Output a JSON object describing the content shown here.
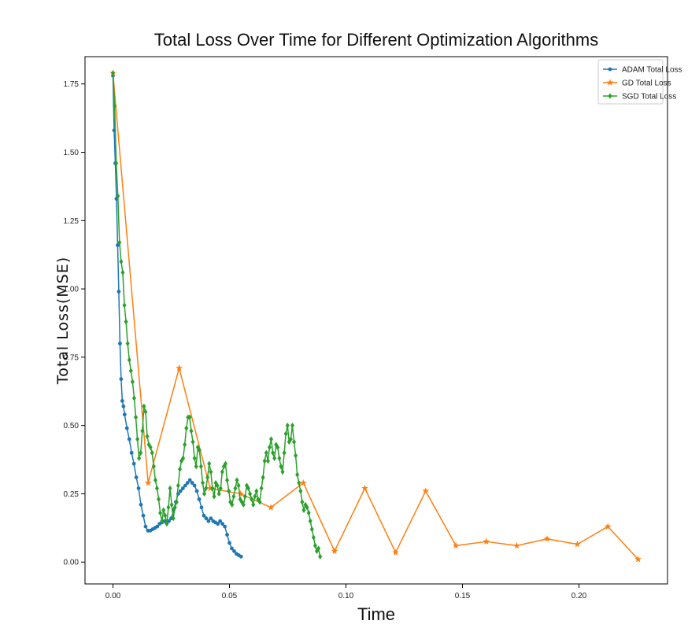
{
  "chart_data": {
    "type": "line",
    "title": "Total Loss Over Time for Different Optimization Algorithms",
    "xlabel": "Time",
    "ylabel": "Total Loss(MSE)",
    "xlim": [
      -0.012,
      0.238
    ],
    "ylim": [
      -0.08,
      1.85
    ],
    "xticks": [
      "0.00",
      "0.05",
      "0.10",
      "0.15",
      "0.20"
    ],
    "xtick_values": [
      0.0,
      0.05,
      0.1,
      0.15,
      0.2
    ],
    "yticks": [
      "0.00",
      "0.25",
      "0.50",
      "0.75",
      "1.00",
      "1.25",
      "1.50",
      "1.75"
    ],
    "ytick_values": [
      0.0,
      0.25,
      0.5,
      0.75,
      1.0,
      1.25,
      1.5,
      1.75
    ],
    "grid": false,
    "legend_position": "top-right",
    "series": [
      {
        "name": "ADAM Total Loss",
        "color": "#1f77b4",
        "marker": "circle",
        "x": [
          0.0,
          0.0005,
          0.001,
          0.0015,
          0.002,
          0.0025,
          0.003,
          0.0035,
          0.004,
          0.0045,
          0.005,
          0.006,
          0.007,
          0.008,
          0.009,
          0.01,
          0.011,
          0.012,
          0.013,
          0.014,
          0.015,
          0.016,
          0.017,
          0.018,
          0.019,
          0.02,
          0.021,
          0.022,
          0.023,
          0.024,
          0.025,
          0.026,
          0.027,
          0.028,
          0.029,
          0.03,
          0.031,
          0.032,
          0.033,
          0.034,
          0.035,
          0.036,
          0.037,
          0.038,
          0.039,
          0.04,
          0.041,
          0.042,
          0.043,
          0.044,
          0.045,
          0.046,
          0.047,
          0.048,
          0.049,
          0.05,
          0.051,
          0.052,
          0.053,
          0.054,
          0.055
        ],
        "values": [
          1.78,
          1.58,
          1.46,
          1.33,
          1.16,
          0.99,
          0.8,
          0.67,
          0.59,
          0.57,
          0.54,
          0.49,
          0.45,
          0.4,
          0.36,
          0.31,
          0.27,
          0.21,
          0.17,
          0.13,
          0.115,
          0.115,
          0.12,
          0.125,
          0.13,
          0.14,
          0.145,
          0.15,
          0.145,
          0.15,
          0.16,
          0.19,
          0.22,
          0.25,
          0.26,
          0.27,
          0.28,
          0.29,
          0.3,
          0.29,
          0.28,
          0.26,
          0.23,
          0.2,
          0.17,
          0.16,
          0.15,
          0.16,
          0.15,
          0.145,
          0.14,
          0.15,
          0.14,
          0.13,
          0.1,
          0.07,
          0.05,
          0.04,
          0.03,
          0.025,
          0.02
        ]
      },
      {
        "name": "GD Total Loss",
        "color": "#ff7f0e",
        "marker": "star",
        "x": [
          0.0,
          0.0151,
          0.0284,
          0.0417,
          0.0547,
          0.0678,
          0.0817,
          0.0951,
          0.1081,
          0.1213,
          0.1342,
          0.1472,
          0.1602,
          0.1733,
          0.1863,
          0.1993,
          0.2124,
          0.2254
        ],
        "values": [
          1.79,
          0.29,
          0.71,
          0.27,
          0.25,
          0.2,
          0.29,
          0.04,
          0.27,
          0.035,
          0.26,
          0.06,
          0.075,
          0.06,
          0.085,
          0.065,
          0.13,
          0.01
        ]
      },
      {
        "name": "SGD Total Loss",
        "color": "#2ca02c",
        "marker": "diamond",
        "x": [
          0.0,
          0.0007,
          0.0014,
          0.0021,
          0.0028,
          0.0035,
          0.0042,
          0.0049,
          0.0056,
          0.0063,
          0.007,
          0.0077,
          0.0084,
          0.0091,
          0.0098,
          0.0105,
          0.0112,
          0.0119,
          0.0126,
          0.0133,
          0.014,
          0.0147,
          0.0154,
          0.0161,
          0.0168,
          0.0175,
          0.0182,
          0.0189,
          0.0196,
          0.0203,
          0.021,
          0.0217,
          0.0224,
          0.0231,
          0.0238,
          0.0245,
          0.0252,
          0.0259,
          0.0266,
          0.0273,
          0.028,
          0.0287,
          0.0294,
          0.0301,
          0.0308,
          0.0315,
          0.0322,
          0.0329,
          0.0336,
          0.0343,
          0.035,
          0.0357,
          0.0364,
          0.0371,
          0.0378,
          0.0385,
          0.0392,
          0.0399,
          0.0406,
          0.0413,
          0.042,
          0.0427,
          0.0434,
          0.0441,
          0.0448,
          0.0455,
          0.0462,
          0.0469,
          0.0476,
          0.0483,
          0.049,
          0.0497,
          0.0504,
          0.0511,
          0.0518,
          0.0525,
          0.0532,
          0.0539,
          0.0546,
          0.0553,
          0.056,
          0.0567,
          0.0574,
          0.0581,
          0.0588,
          0.0595,
          0.0602,
          0.0609,
          0.0616,
          0.0623,
          0.063,
          0.0637,
          0.0644,
          0.0651,
          0.0658,
          0.0665,
          0.0672,
          0.0679,
          0.0686,
          0.0693,
          0.07,
          0.0707,
          0.0714,
          0.0721,
          0.0728,
          0.0735,
          0.0742,
          0.0749,
          0.0756,
          0.0763,
          0.077,
          0.0777,
          0.0784,
          0.0791,
          0.0798,
          0.0805,
          0.0812,
          0.0819,
          0.0826,
          0.0833,
          0.084,
          0.0847,
          0.0854,
          0.0861,
          0.0868,
          0.0875,
          0.0882,
          0.0889
        ],
        "values": [
          1.79,
          1.67,
          1.46,
          1.34,
          1.17,
          1.1,
          1.06,
          0.94,
          0.88,
          0.8,
          0.74,
          0.7,
          0.66,
          0.6,
          0.53,
          0.45,
          0.38,
          0.4,
          0.48,
          0.57,
          0.55,
          0.46,
          0.43,
          0.42,
          0.4,
          0.35,
          0.3,
          0.27,
          0.23,
          0.18,
          0.15,
          0.19,
          0.17,
          0.14,
          0.2,
          0.27,
          0.21,
          0.16,
          0.2,
          0.22,
          0.28,
          0.34,
          0.37,
          0.38,
          0.43,
          0.49,
          0.53,
          0.53,
          0.48,
          0.44,
          0.38,
          0.35,
          0.42,
          0.41,
          0.35,
          0.29,
          0.25,
          0.27,
          0.31,
          0.36,
          0.33,
          0.27,
          0.24,
          0.29,
          0.28,
          0.25,
          0.27,
          0.33,
          0.35,
          0.36,
          0.3,
          0.26,
          0.22,
          0.21,
          0.24,
          0.27,
          0.3,
          0.28,
          0.23,
          0.22,
          0.21,
          0.24,
          0.28,
          0.27,
          0.25,
          0.23,
          0.21,
          0.24,
          0.26,
          0.23,
          0.22,
          0.27,
          0.31,
          0.37,
          0.4,
          0.37,
          0.42,
          0.45,
          0.4,
          0.38,
          0.43,
          0.42,
          0.38,
          0.35,
          0.33,
          0.4,
          0.47,
          0.5,
          0.44,
          0.45,
          0.5,
          0.44,
          0.39,
          0.32,
          0.29,
          0.26,
          0.22,
          0.19,
          0.21,
          0.2,
          0.18,
          0.15,
          0.12,
          0.09,
          0.06,
          0.04,
          0.05,
          0.02
        ]
      }
    ]
  }
}
